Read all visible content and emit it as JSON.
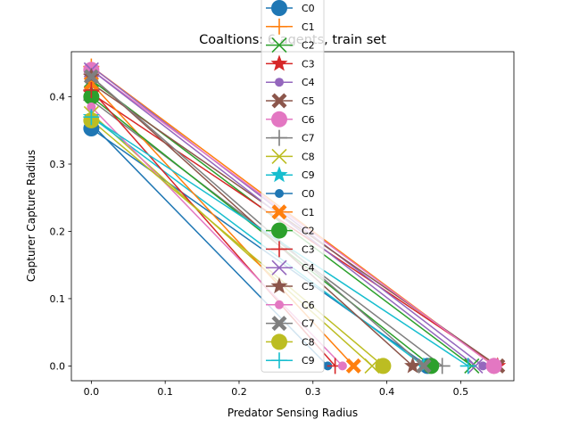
{
  "chart_data": {
    "type": "line",
    "title": "Coaltions: 6 agents, train set",
    "xlabel": "Predator Sensing Radius",
    "ylabel": "Capturer Capture Radius",
    "xlim": [
      -0.027,
      0.572
    ],
    "ylim": [
      -0.022,
      0.467
    ],
    "xticks": [
      "0.0",
      "0.1",
      "0.2",
      "0.3",
      "0.4",
      "0.5"
    ],
    "yticks": [
      "0.0",
      "0.1",
      "0.2",
      "0.3",
      "0.4"
    ],
    "grid": false,
    "legend_position": "upper-center",
    "legend_labels": [
      "C0",
      "C1",
      "C2",
      "C3",
      "C4",
      "C5",
      "C6",
      "C7",
      "C8",
      "C9",
      "C0",
      "C1",
      "C2",
      "C3",
      "C4",
      "C5",
      "C6",
      "C7",
      "C8",
      "C9"
    ],
    "series": [
      {
        "color": "#1f77b4",
        "marker": "o-large",
        "points": [
          [
            0,
            0.353
          ],
          [
            0.455,
            0
          ]
        ]
      },
      {
        "color": "#ff7f0e",
        "marker": "plus",
        "points": [
          [
            0,
            0.445
          ],
          [
            0.545,
            0
          ]
        ]
      },
      {
        "color": "#2ca02c",
        "marker": "x",
        "points": [
          [
            0,
            0.425
          ],
          [
            0.515,
            0
          ]
        ]
      },
      {
        "color": "#d62728",
        "marker": "star",
        "points": [
          [
            0,
            0.405
          ],
          [
            0.55,
            0
          ]
        ]
      },
      {
        "color": "#9467bd",
        "marker": "o-small",
        "points": [
          [
            0,
            0.445
          ],
          [
            0.53,
            0
          ]
        ]
      },
      {
        "color": "#8c564b",
        "marker": "X",
        "points": [
          [
            0,
            0.42
          ],
          [
            0.55,
            0
          ]
        ]
      },
      {
        "color": "#e377c2",
        "marker": "o-large",
        "points": [
          [
            0,
            0.44
          ],
          [
            0.545,
            0
          ]
        ]
      },
      {
        "color": "#7f7f7f",
        "marker": "plus",
        "points": [
          [
            0,
            0.395
          ],
          [
            0.475,
            0
          ]
        ]
      },
      {
        "color": "#bcbd22",
        "marker": "x",
        "points": [
          [
            0,
            0.375
          ],
          [
            0.38,
            0
          ]
        ]
      },
      {
        "color": "#17becf",
        "marker": "star",
        "points": [
          [
            0,
            0.37
          ],
          [
            0.45,
            0
          ]
        ]
      },
      {
        "color": "#1f77b4",
        "marker": "o-small",
        "points": [
          [
            0,
            0.36
          ],
          [
            0.32,
            0
          ]
        ]
      },
      {
        "color": "#ff7f0e",
        "marker": "X",
        "points": [
          [
            0,
            0.42
          ],
          [
            0.355,
            0
          ]
        ]
      },
      {
        "color": "#2ca02c",
        "marker": "o-large",
        "points": [
          [
            0,
            0.4
          ],
          [
            0.46,
            0
          ]
        ]
      },
      {
        "color": "#d62728",
        "marker": "plus",
        "points": [
          [
            0,
            0.41
          ],
          [
            0.33,
            0
          ]
        ]
      },
      {
        "color": "#9467bd",
        "marker": "x",
        "points": [
          [
            0,
            0.44
          ],
          [
            0.52,
            0
          ]
        ]
      },
      {
        "color": "#8c564b",
        "marker": "star",
        "points": [
          [
            0,
            0.43
          ],
          [
            0.435,
            0
          ]
        ]
      },
      {
        "color": "#e377c2",
        "marker": "o-small",
        "points": [
          [
            0,
            0.385
          ],
          [
            0.34,
            0
          ]
        ]
      },
      {
        "color": "#7f7f7f",
        "marker": "X",
        "points": [
          [
            0,
            0.43
          ],
          [
            0.45,
            0
          ]
        ]
      },
      {
        "color": "#bcbd22",
        "marker": "o-large",
        "points": [
          [
            0,
            0.365
          ],
          [
            0.395,
            0
          ]
        ]
      },
      {
        "color": "#17becf",
        "marker": "plus",
        "points": [
          [
            0,
            0.37
          ],
          [
            0.51,
            0
          ]
        ]
      }
    ]
  }
}
